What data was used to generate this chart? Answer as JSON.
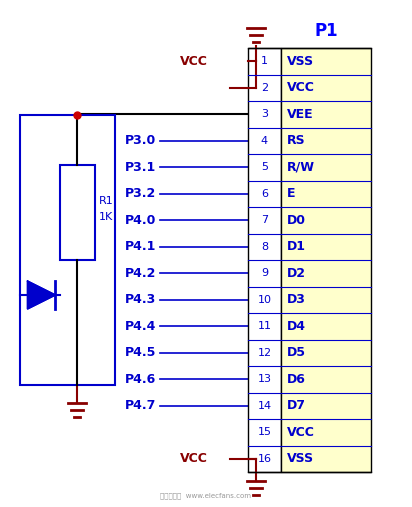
{
  "bg_color": "#ffffff",
  "pin_color": "#0000cc",
  "connector_bg": "#ffffcc",
  "connector_border": "#000000",
  "wire_color": "#0000cc",
  "black_wire": "#000000",
  "dark_red": "#880000",
  "p1_color": "#0000ff",
  "pin_rows": [
    {
      "num": 1,
      "left": "",
      "right": "VSS"
    },
    {
      "num": 2,
      "left": "",
      "right": "VCC"
    },
    {
      "num": 3,
      "left": "",
      "right": "VEE"
    },
    {
      "num": 4,
      "left": "P3.0",
      "right": "RS"
    },
    {
      "num": 5,
      "left": "P3.1",
      "right": "R/W"
    },
    {
      "num": 6,
      "left": "P3.2",
      "right": "E"
    },
    {
      "num": 7,
      "left": "P4.0",
      "right": "D0"
    },
    {
      "num": 8,
      "left": "P4.1",
      "right": "D1"
    },
    {
      "num": 9,
      "left": "P4.2",
      "right": "D2"
    },
    {
      "num": 10,
      "left": "P4.3",
      "right": "D3"
    },
    {
      "num": 11,
      "left": "P4.4",
      "right": "D4"
    },
    {
      "num": 12,
      "left": "P4.5",
      "right": "D5"
    },
    {
      "num": 13,
      "left": "P4.6",
      "right": "D6"
    },
    {
      "num": 14,
      "left": "P4.7",
      "right": "D7"
    },
    {
      "num": 15,
      "left": "",
      "right": "VCC"
    },
    {
      "num": 16,
      "left": "",
      "right": "VSS"
    }
  ],
  "figsize": [
    4.12,
    5.07
  ],
  "dpi": 100
}
